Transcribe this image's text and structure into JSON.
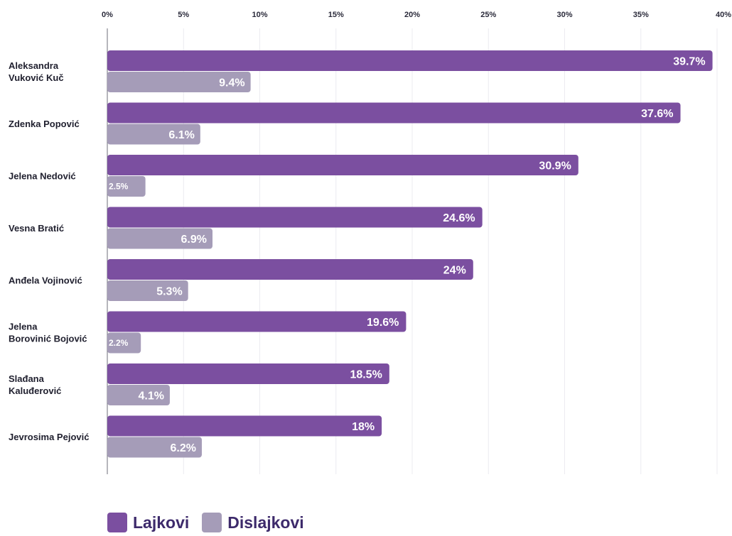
{
  "colors": {
    "likes": "#7b4fa0",
    "dislikes": "#a59cb8",
    "axis": "#6e6e7a",
    "grid": "#ecebf0"
  },
  "chart_data": {
    "type": "bar",
    "orientation": "horizontal",
    "categories": [
      [
        "Aleksandra",
        "Vuković Kuč"
      ],
      [
        "Zdenka Popović"
      ],
      [
        "Jelena Nedović"
      ],
      [
        "Vesna Bratić"
      ],
      [
        "Anđela Vojinović"
      ],
      [
        "Jelena",
        "Borovinić Bojović"
      ],
      [
        "Slađana",
        "Kaluđerović"
      ],
      [
        "Jevrosima Pejović"
      ]
    ],
    "series": [
      {
        "name": "Lajkovi",
        "values": [
          39.7,
          37.6,
          30.9,
          24.6,
          24,
          19.6,
          18.5,
          18
        ],
        "labels": [
          "39.7%",
          "37.6%",
          "30.9%",
          "24.6%",
          "24%",
          "19.6%",
          "18.5%",
          "18%"
        ]
      },
      {
        "name": "Dislajkovi",
        "values": [
          9.4,
          6.1,
          2.5,
          6.9,
          5.3,
          2.2,
          4.1,
          6.2
        ],
        "labels": [
          "9.4%",
          "6.1%",
          "2.5%",
          "6.9%",
          "5.3%",
          "2.2%",
          "4.1%",
          "6.2%"
        ]
      }
    ],
    "xlim": [
      0,
      40
    ],
    "x_ticks": [
      0,
      5,
      10,
      15,
      20,
      25,
      30,
      35,
      40
    ],
    "x_tick_labels": [
      "0%",
      "5%",
      "10%",
      "15%",
      "20%",
      "25%",
      "30%",
      "35%",
      "40%"
    ],
    "x_axis_position": "top",
    "legend_position": "bottom-left",
    "grid": false
  },
  "legend": {
    "likes_label": "Lajkovi",
    "dislikes_label": "Dislajkovi"
  }
}
